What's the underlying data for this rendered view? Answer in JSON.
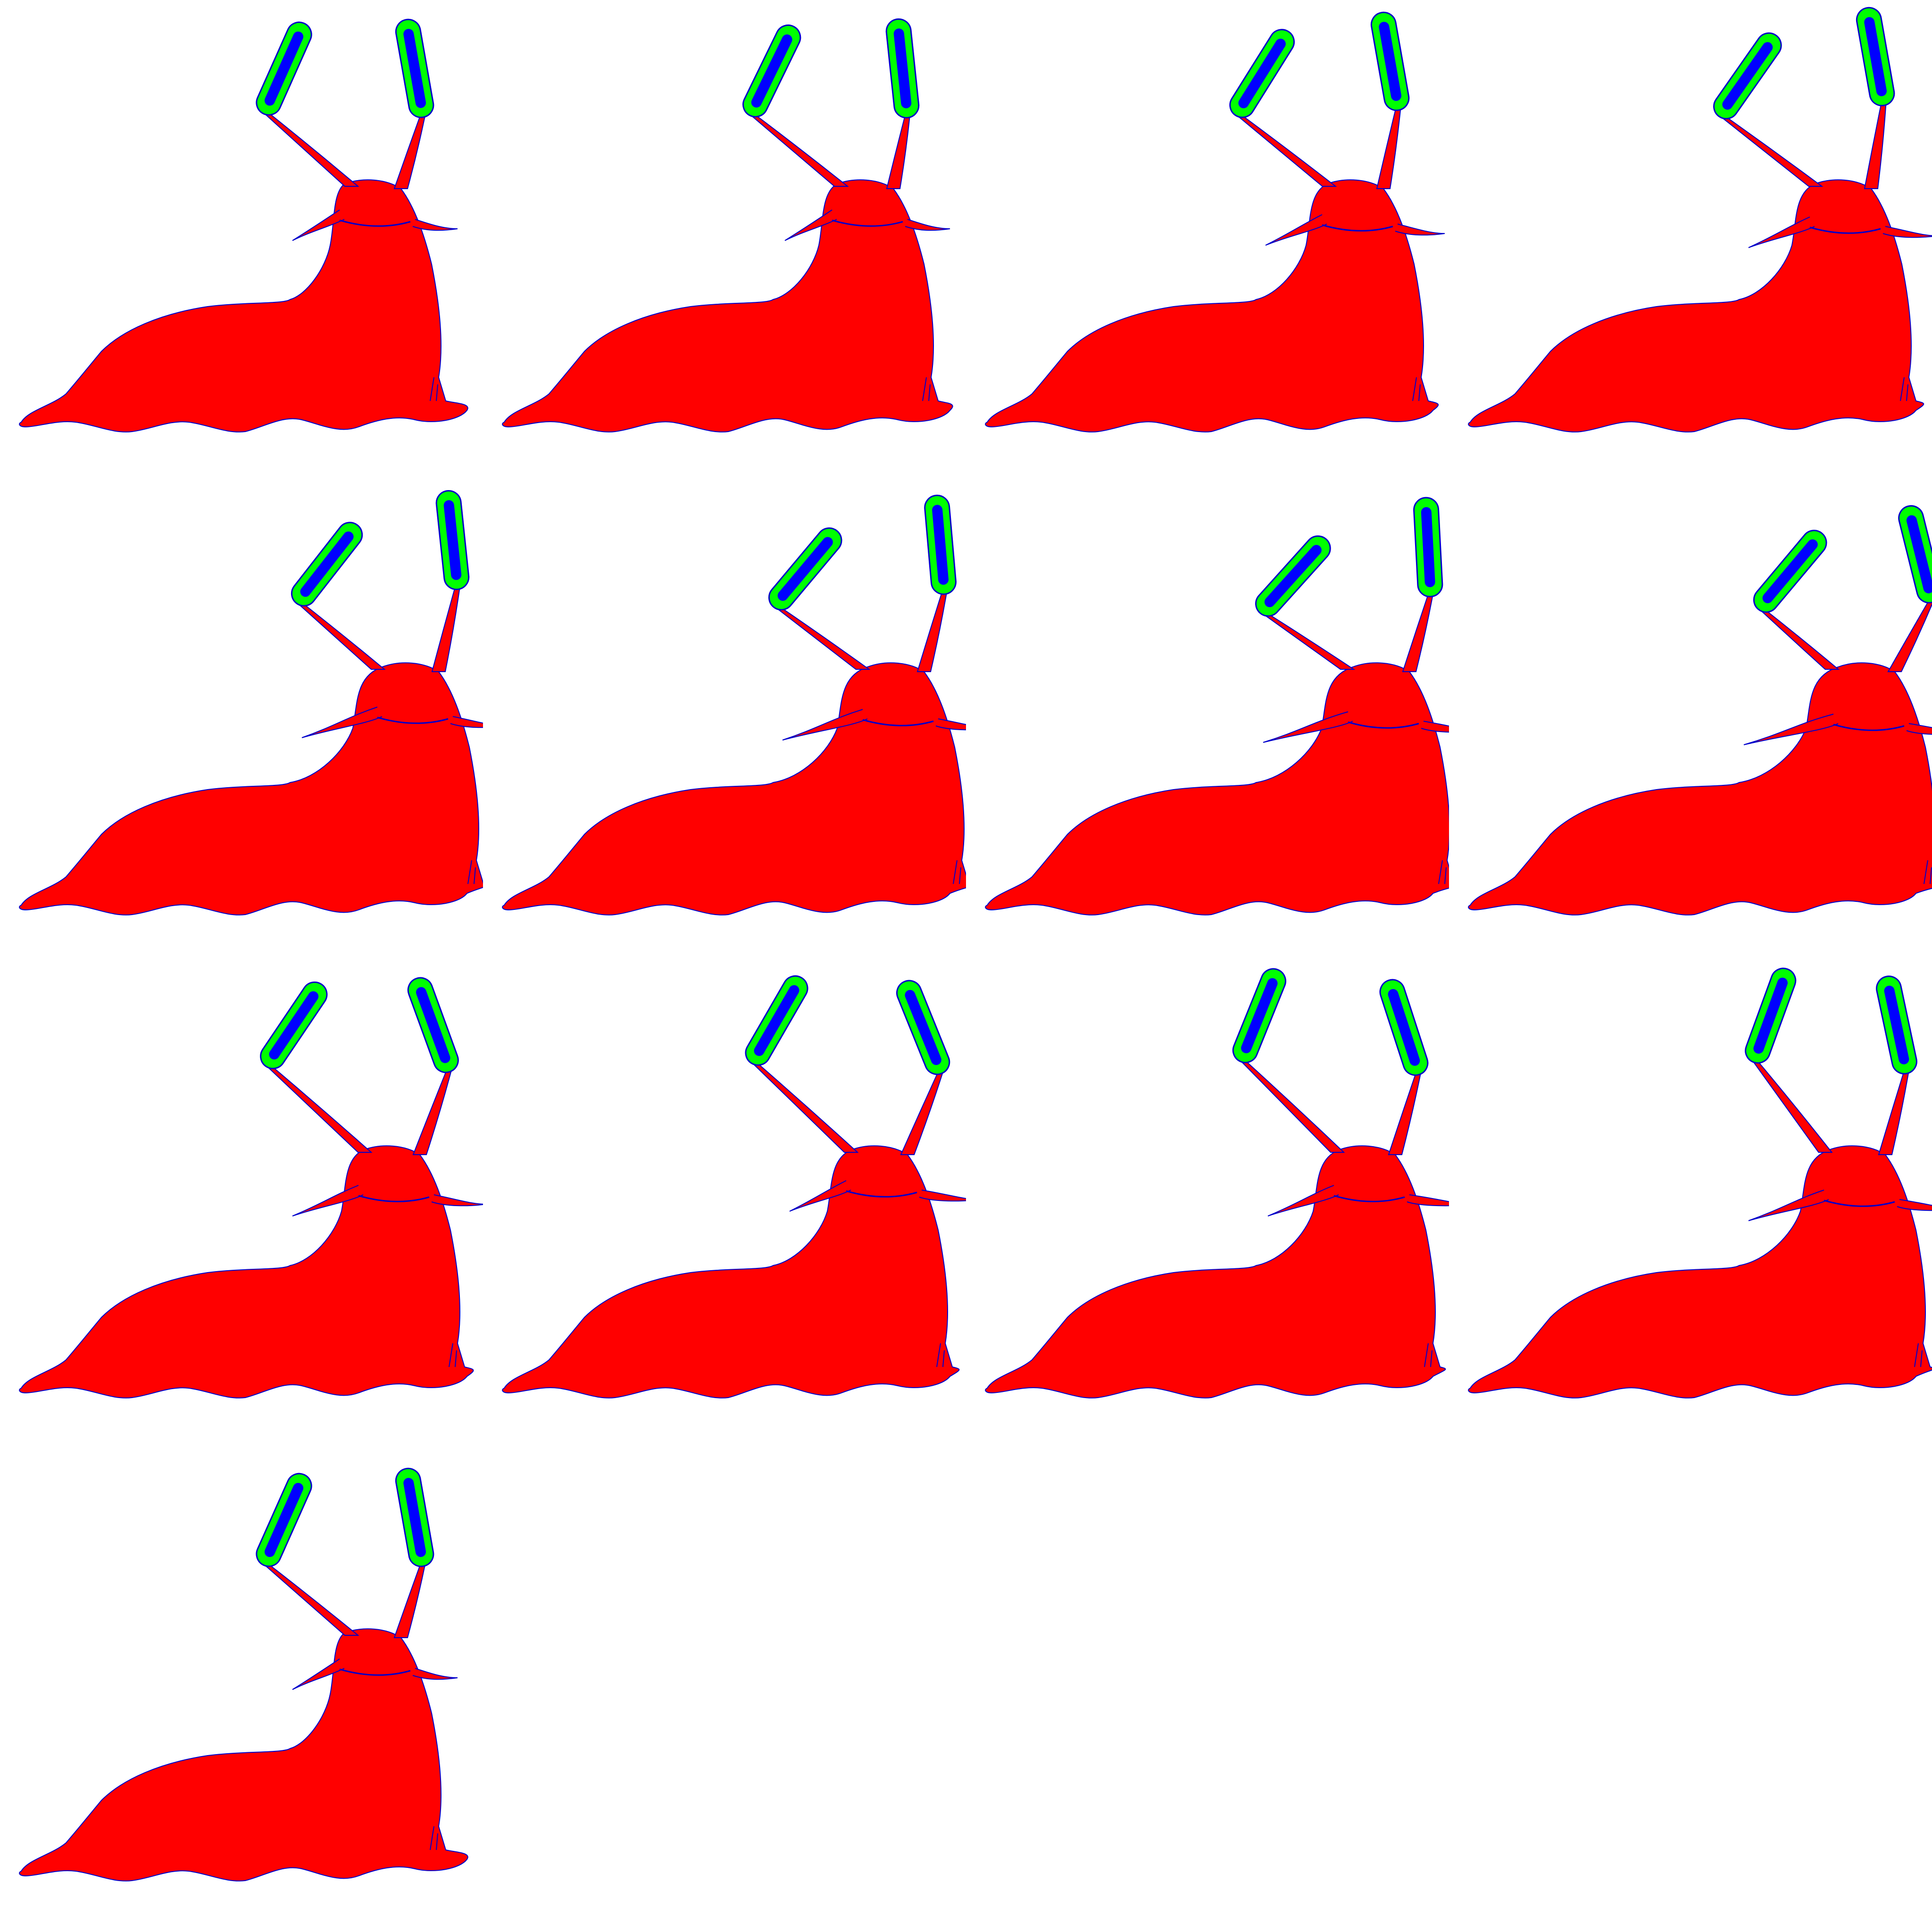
{
  "sprite_sheet": {
    "name": "slug-animation-sheet",
    "frame_count": 13,
    "columns": 4,
    "rows": 4,
    "colors": {
      "background": "#ffffff",
      "body_fill": "#ff0000",
      "outline": "#0000cc",
      "eye_outer": "#00ff00",
      "eye_inner": "#0000ff"
    }
  },
  "frames": [
    {
      "index": 1
    },
    {
      "index": 2
    },
    {
      "index": 3
    },
    {
      "index": 4
    },
    {
      "index": 5
    },
    {
      "index": 6
    },
    {
      "index": 7
    },
    {
      "index": 8
    },
    {
      "index": 9
    },
    {
      "index": 10
    },
    {
      "index": 11
    },
    {
      "index": 12
    },
    {
      "index": 13
    }
  ]
}
